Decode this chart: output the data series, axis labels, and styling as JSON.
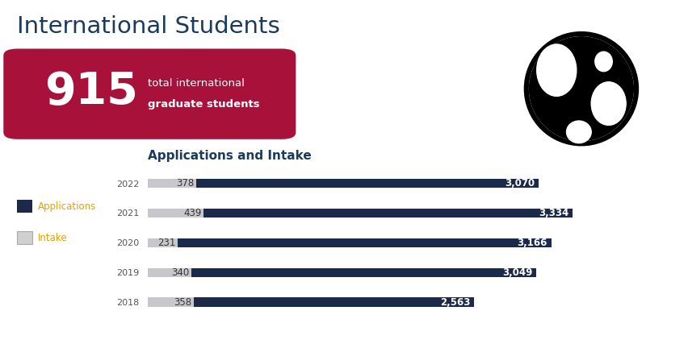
{
  "title": "International Students",
  "stat_number": "915",
  "stat_text_line1": "total international",
  "stat_text_line2": "graduate students",
  "chart_title": "Applications and Intake",
  "years": [
    "2022",
    "2021",
    "2020",
    "2019",
    "2018"
  ],
  "applications": [
    3070,
    3334,
    3166,
    3049,
    2563
  ],
  "intake": [
    378,
    439,
    231,
    340,
    358
  ],
  "app_labels": [
    "3,070",
    "3,334",
    "3,166",
    "3,049",
    "2,563"
  ],
  "intake_labels": [
    "378",
    "439",
    "231",
    "340",
    "358"
  ],
  "app_color": "#1b2a4a",
  "intake_color": "#c8c8cc",
  "title_color": "#1b3a5c",
  "banner_color": "#a8123a",
  "background_color": "#ffffff",
  "chart_title_color": "#1b3a5c",
  "legend_app_color": "#1b2a4a",
  "legend_intake_color": "#d0d0d0",
  "year_label_color": "#555555",
  "legend_text_color": "#e8a000",
  "max_val": 3700,
  "figsize": [
    8.52,
    4.32
  ],
  "dpi": 100
}
